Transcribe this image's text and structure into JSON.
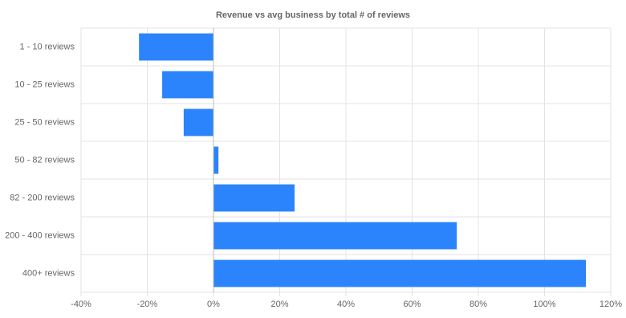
{
  "chart_data": {
    "type": "hbar",
    "title": "Revenue vs avg business by total # of reviews",
    "categories": [
      "1 - 10 reviews",
      "10 - 25 reviews",
      "25 - 50 reviews",
      "50 - 82 reviews",
      "82 - 200 reviews",
      "200 - 400 reviews",
      "400+ reviews"
    ],
    "values": [
      -22.5,
      -15.5,
      -9,
      1.5,
      24.5,
      73.5,
      112.5
    ],
    "color": "#2b84fb",
    "xlim": [
      -40,
      120
    ],
    "xticks": [
      {
        "value": -40,
        "label": "-40%"
      },
      {
        "value": -20,
        "label": "-20%"
      },
      {
        "value": 0,
        "label": "0%"
      },
      {
        "value": 20,
        "label": "20%"
      },
      {
        "value": 40,
        "label": "40%"
      },
      {
        "value": 60,
        "label": "60%"
      },
      {
        "value": 80,
        "label": "80%"
      },
      {
        "value": 100,
        "label": "100%"
      },
      {
        "value": 120,
        "label": "120%"
      }
    ],
    "grid": true
  }
}
